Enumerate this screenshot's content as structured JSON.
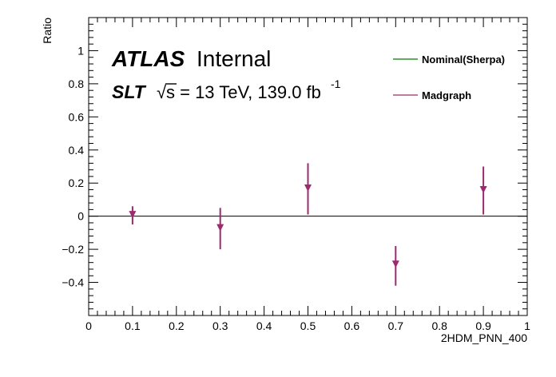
{
  "chart_data": {
    "type": "scatter",
    "xlabel": "2HDM_PNN_400",
    "ylabel": "Ratio",
    "xlim": [
      0,
      1
    ],
    "ylim": [
      -0.6,
      1.2
    ],
    "x_ticks": [
      0,
      0.1,
      0.2,
      0.3,
      0.4,
      0.5,
      0.6,
      0.7,
      0.8,
      0.9,
      1
    ],
    "x_tick_labels": [
      "0",
      "0.1",
      "0.2",
      "0.3",
      "0.4",
      "0.5",
      "0.6",
      "0.7",
      "0.8",
      "0.9",
      "1"
    ],
    "y_ticks": [
      -0.4,
      -0.2,
      0,
      0.2,
      0.4,
      0.6,
      0.8,
      1
    ],
    "y_tick_labels": [
      "−0.4",
      "−0.2",
      "0",
      "0.2",
      "0.4",
      "0.6",
      "0.8",
      "1"
    ],
    "reference_line": 0,
    "grid": false,
    "legend_position": "top-right",
    "series": [
      {
        "name": "Nominal(Sherpa)",
        "color": "#007a00",
        "marker": "line",
        "x": [],
        "y": []
      },
      {
        "name": "Madgraph",
        "color": "#9c2a6e",
        "marker": "triangle-down",
        "x": [
          0.1,
          0.3,
          0.5,
          0.7,
          0.9
        ],
        "y": [
          0.01,
          -0.07,
          0.17,
          -0.29,
          0.16
        ],
        "y_err_low": [
          0.06,
          0.13,
          0.16,
          0.13,
          0.15
        ],
        "y_err_high": [
          0.05,
          0.12,
          0.15,
          0.11,
          0.14
        ]
      }
    ]
  },
  "annotations": {
    "atlas": "ATLAS",
    "internal": "Internal",
    "channel": "SLT",
    "sqrt_symbol": "√",
    "energy_text": "s = 13 TeV, 139.0 fb",
    "energy_superscript": "-1"
  }
}
